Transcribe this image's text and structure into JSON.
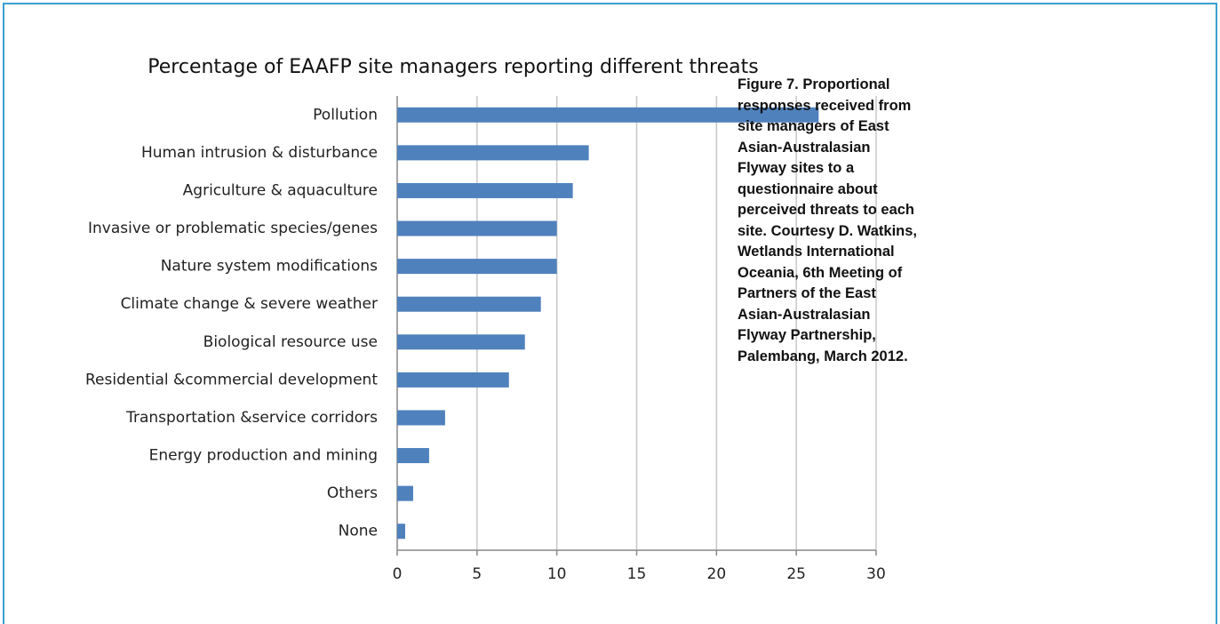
{
  "chart_data": {
    "type": "bar",
    "orientation": "horizontal",
    "title": "Percentage of EAAFP site managers reporting different threats",
    "categories": [
      "Pollution",
      "Human intrusion & disturbance",
      "Agriculture & aquaculture",
      "Invasive or problematic species/genes",
      "Nature system modifications",
      "Climate change & severe weather",
      "Biological resource use",
      "Residential &commercial development",
      "Transportation &service corridors",
      "Energy production and mining",
      "Others",
      "None"
    ],
    "values": [
      26.4,
      12,
      11,
      10,
      10,
      9,
      8,
      7,
      3,
      2,
      1,
      0.5
    ],
    "color": "#4f81bd",
    "xlim": [
      0,
      30
    ],
    "xticks": [
      0,
      5,
      10,
      15,
      20,
      25,
      30
    ],
    "grid": true
  },
  "caption": "Figure 7. Proportional responses received from site managers of East Asian-Australasian Flyway sites to a questionnaire about perceived threats to each site. Courtesy D. Watkins, Wetlands International Oceania, 6th Meeting of Partners of the East Asian-Australasian Flyway Partnership, Palembang, March 2012."
}
